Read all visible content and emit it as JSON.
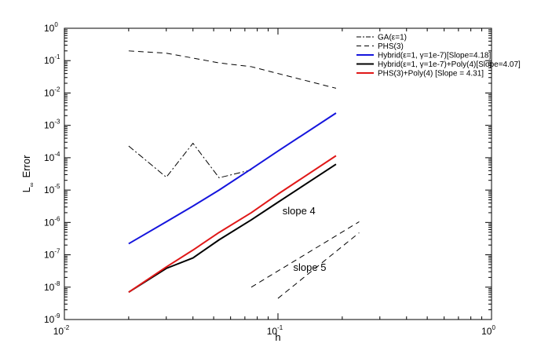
{
  "chart_data": {
    "type": "line",
    "xlabel": "h",
    "ylabel_main": "L",
    "ylabel_sub": "∞",
    "ylabel_rest": "Error",
    "x_scale": "log",
    "y_scale": "log",
    "xlim": [
      0.01,
      1
    ],
    "ylim": [
      1e-09,
      1
    ],
    "grid": false,
    "legend_position": "top-right",
    "x_ticks": [
      {
        "base": "10",
        "exp": "-2",
        "value": 0.01
      },
      {
        "base": "10",
        "exp": "-1",
        "value": 0.1
      },
      {
        "base": "10",
        "exp": "0",
        "value": 1
      }
    ],
    "y_ticks": [
      {
        "base": "10",
        "exp": "-9",
        "value": 1e-09
      },
      {
        "base": "10",
        "exp": "-8",
        "value": 1e-08
      },
      {
        "base": "10",
        "exp": "-7",
        "value": 1e-07
      },
      {
        "base": "10",
        "exp": "-6",
        "value": 1e-06
      },
      {
        "base": "10",
        "exp": "-5",
        "value": 1e-05
      },
      {
        "base": "10",
        "exp": "-4",
        "value": 0.0001
      },
      {
        "base": "10",
        "exp": "-3",
        "value": 0.001
      },
      {
        "base": "10",
        "exp": "-2",
        "value": 0.01
      },
      {
        "base": "10",
        "exp": "-1",
        "value": 0.1
      },
      {
        "base": "10",
        "exp": "0",
        "value": 1
      }
    ],
    "series": [
      {
        "name": "GA(ε=1)",
        "color": "#000000",
        "style": "dashdot",
        "x": [
          0.02,
          0.03,
          0.04,
          0.053,
          0.075
        ],
        "y": [
          0.00023,
          2.5e-05,
          0.00028,
          2.4e-05,
          4.2e-05
        ]
      },
      {
        "name": "PHS(3)",
        "color": "#000000",
        "style": "dashed",
        "x": [
          0.02,
          0.03,
          0.04,
          0.053,
          0.075,
          0.1,
          0.187
        ],
        "y": [
          0.2,
          0.17,
          0.12,
          0.085,
          0.065,
          0.04,
          0.014
        ]
      },
      {
        "name": "Hybrid(ε=1, γ=1e-7)[Slope=4.18]",
        "color": "#1515dd",
        "style": "solid",
        "x": [
          0.02,
          0.03,
          0.04,
          0.053,
          0.075,
          0.1,
          0.187
        ],
        "y": [
          2.2e-07,
          1.05e-06,
          3.2e-06,
          1e-05,
          4.5e-05,
          0.00016,
          0.0024
        ]
      },
      {
        "name": "Hybrid(ε=1, γ=1e-7)+Poly(4)[Slope=4.07]",
        "color": "#000000",
        "style": "solid",
        "x": [
          0.02,
          0.03,
          0.04,
          0.053,
          0.075,
          0.1,
          0.187
        ],
        "y": [
          7e-09,
          3.8e-08,
          8e-08,
          2.9e-07,
          1.2e-06,
          4.2e-06,
          6.3e-05
        ]
      },
      {
        "name": "PHS(3)+Poly(4) [Slope = 4.31]",
        "color": "#e01818",
        "style": "solid",
        "x": [
          0.02,
          0.03,
          0.04,
          0.053,
          0.075,
          0.1,
          0.187
        ],
        "y": [
          7e-09,
          4.2e-08,
          1.4e-07,
          4.9e-07,
          2e-06,
          7.5e-06,
          0.000115
        ]
      }
    ],
    "reference_lines": [
      {
        "label": "slope 4",
        "color": "#000000",
        "style": "dashed",
        "x": [
          0.075,
          0.24
        ],
        "y": [
          1e-08,
          1.05e-06
        ]
      },
      {
        "label": "slope 5",
        "color": "#000000",
        "style": "dashed",
        "x": [
          0.1,
          0.24
        ],
        "y": [
          4.5e-09,
          4.8e-07
        ]
      }
    ],
    "annotations": [
      {
        "text": "slope 4",
        "x": 0.105,
        "y": 1.8e-06
      },
      {
        "text": "slope 5",
        "x": 0.118,
        "y": 3.2e-08
      }
    ]
  }
}
